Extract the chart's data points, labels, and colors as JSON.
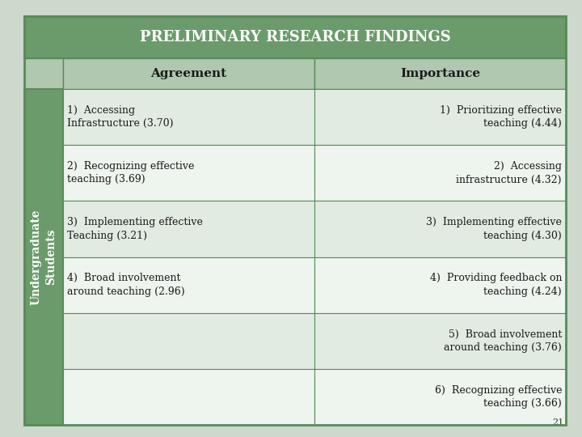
{
  "title": "PRELIMINARY RESEARCH FINDINGS",
  "title_bg": "#6b9b6b",
  "title_text_color": "#ffffff",
  "header_bg": "#b0c8b0",
  "header_text_color": "#1a1a1a",
  "row_label": "Undergraduate\nStudents",
  "row_label_bg": "#6b9b6b",
  "row_label_text_color": "#ffffff",
  "col_headers": [
    "Agreement",
    "Importance"
  ],
  "cell_bg_light": "#e2ebe2",
  "cell_bg_lighter": "#eef4ee",
  "cell_border_color": "#5a8a5a",
  "agreement_rows": [
    "1)  Accessing\nInfrastructure (3.70)",
    "2)  Recognizing effective\nteaching (3.69)",
    "3)  Implementing effective\nTeaching (3.21)",
    "4)  Broad involvement\naround teaching (2.96)",
    "",
    ""
  ],
  "importance_rows": [
    "1)  Prioritizing effective\nteaching (4.44)",
    "2)  Accessing\ninfrastructure (4.32)",
    "3)  Implementing effective\nteaching (4.30)",
    "4)  Providing feedback on\nteaching (4.24)",
    "5)  Broad involvement\naround teaching (3.76)",
    "6)  Recognizing effective\nteaching (3.66)"
  ],
  "page_number": "21",
  "bg_color": "#cdd9cd",
  "font_size_title": 13,
  "font_size_header": 11,
  "font_size_cell": 9,
  "font_size_row_label": 10
}
